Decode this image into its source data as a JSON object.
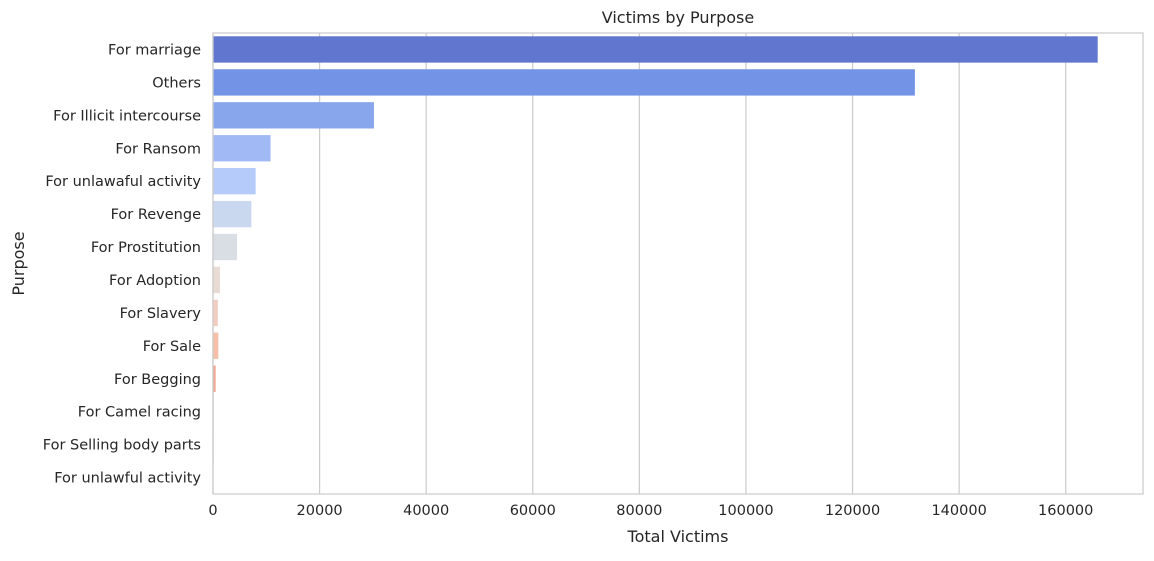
{
  "chart_data": {
    "type": "bar",
    "orientation": "horizontal",
    "title": "Victims by Purpose",
    "xlabel": "Total Victims",
    "ylabel": "Purpose",
    "xlim": [
      0,
      174500
    ],
    "xticks": [
      0,
      20000,
      40000,
      60000,
      80000,
      100000,
      120000,
      140000,
      160000
    ],
    "grid": "vertical",
    "categories": [
      "For marriage",
      "Others",
      "For Illicit intercourse",
      "For Ransom",
      "For unlawaful activity",
      "For Revenge",
      "For Prostitution",
      "For Adoption",
      "For Slavery",
      "For Sale",
      "For Begging",
      "For Camel racing",
      "For Selling body parts",
      "For unlawful activity"
    ],
    "values": [
      166000,
      131700,
      30200,
      10800,
      8000,
      7200,
      4500,
      1300,
      900,
      1000,
      500,
      100,
      100,
      50
    ],
    "colors": [
      "#6076CF",
      "#7394E6",
      "#88A6EC",
      "#A1BAF5",
      "#B5CBF9",
      "#C9D7EF",
      "#D9DEE5",
      "#E7DBD3",
      "#F1CDBF",
      "#F6BFA8",
      "#F1A891",
      "#EB9379",
      "#DF7A62",
      "#CF5F4D"
    ]
  }
}
